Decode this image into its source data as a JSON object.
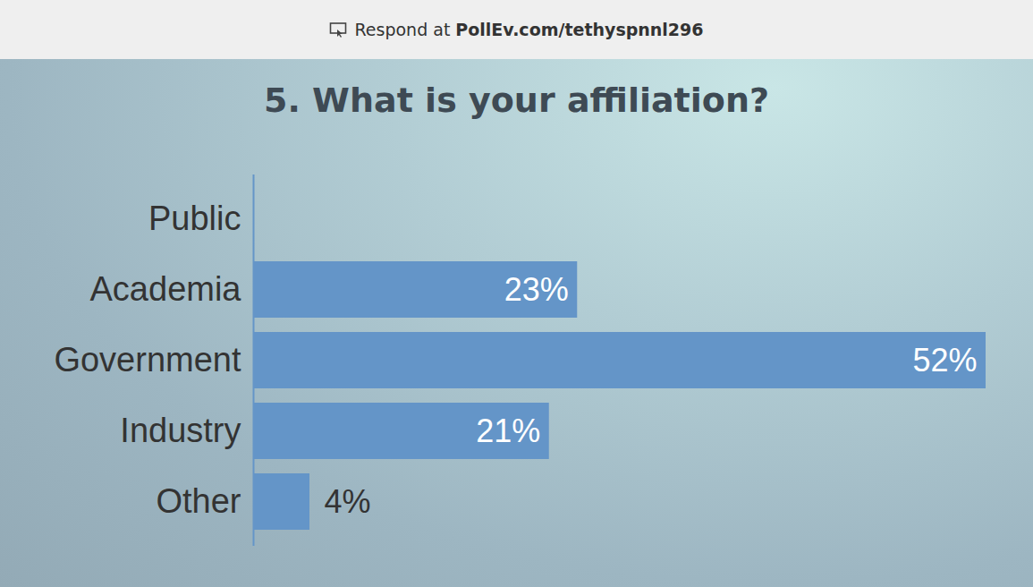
{
  "header": {
    "text": "Respond at",
    "link": "PollEv.com/tethyspnnl296"
  },
  "chart_data": {
    "type": "bar",
    "orientation": "horizontal",
    "title": "5. What is your affiliation?",
    "categories": [
      "Public",
      "Academia",
      "Government",
      "Industry",
      "Other"
    ],
    "values": [
      0,
      23,
      52,
      21,
      4
    ],
    "value_labels": [
      null,
      "23%",
      "52%",
      "21%",
      "4%"
    ],
    "data_labels": true,
    "tick_labels": "y",
    "grid": false,
    "color": "#6495c8"
  }
}
